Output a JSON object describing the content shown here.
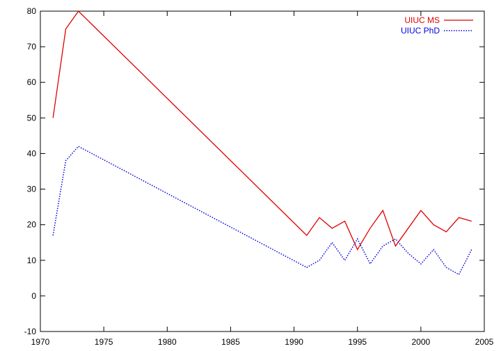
{
  "chart_data": {
    "type": "line",
    "title": "",
    "xlabel": "",
    "ylabel": "",
    "xlim": [
      1970,
      2005
    ],
    "ylim": [
      -10,
      80
    ],
    "x_ticks": [
      1970,
      1975,
      1980,
      1985,
      1990,
      1995,
      2000,
      2005
    ],
    "y_ticks": [
      -10,
      0,
      10,
      20,
      30,
      40,
      50,
      60,
      70,
      80
    ],
    "grid": false,
    "legend_position": "top-right",
    "series": [
      {
        "name": "UIUC MS",
        "color": "#e00000",
        "style": "solid",
        "x": [
          1971,
          1972,
          1973,
          1991,
          1992,
          1993,
          1994,
          1995,
          1996,
          1997,
          1998,
          2000,
          2001,
          2002,
          2003,
          2004
        ],
        "values": [
          50,
          75,
          80,
          17,
          22,
          19,
          21,
          13,
          19,
          24,
          14,
          24,
          20,
          18,
          22,
          21
        ]
      },
      {
        "name": "UIUC PhD",
        "color": "#0000e0",
        "style": "dotted",
        "x": [
          1971,
          1972,
          1973,
          1991,
          1992,
          1993,
          1994,
          1995,
          1996,
          1997,
          1998,
          1999,
          2000,
          2001,
          2002,
          2003,
          2004
        ],
        "values": [
          17,
          38,
          42,
          8,
          10,
          15,
          10,
          16,
          9,
          14,
          16,
          12,
          9,
          13,
          8,
          6,
          13
        ]
      }
    ]
  }
}
